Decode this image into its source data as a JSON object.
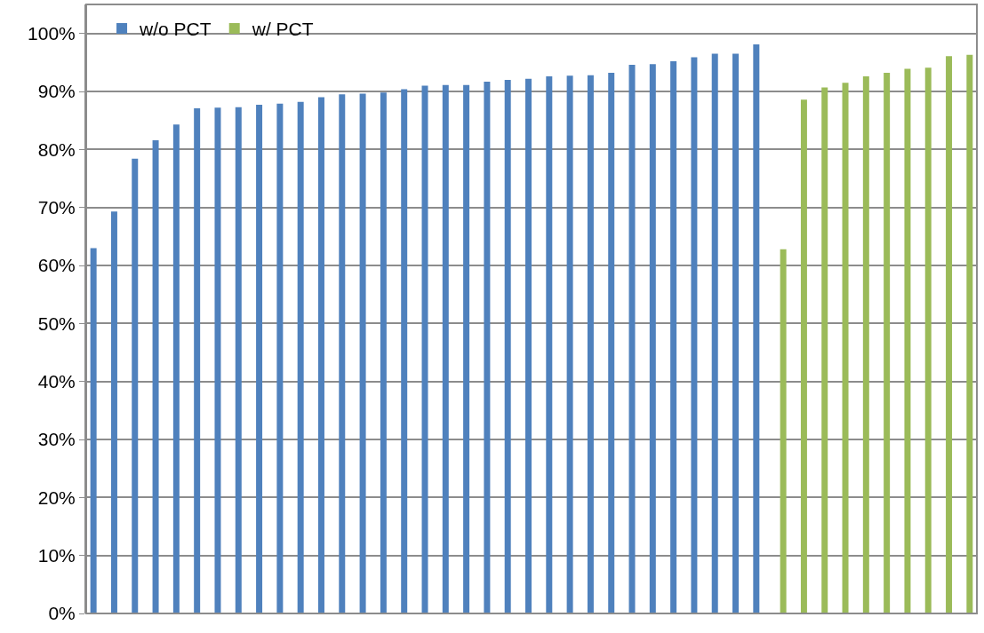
{
  "chart_data": {
    "type": "bar",
    "categories": [
      null,
      null,
      null,
      null,
      null,
      null,
      null,
      null,
      null,
      null,
      null,
      null,
      null,
      null,
      null,
      null,
      null,
      null,
      null,
      null,
      null,
      null,
      null,
      null,
      null,
      null,
      null,
      null,
      null,
      null,
      null,
      null,
      null,
      null,
      null,
      null,
      null,
      null,
      null,
      null,
      null,
      null,
      null
    ],
    "series": [
      {
        "name": "w/o PCT",
        "color": "#4f81bd",
        "values": [
          63.0,
          69.3,
          78.4,
          81.6,
          84.3,
          87.1,
          87.2,
          87.3,
          87.7,
          87.9,
          88.2,
          89.0,
          89.5,
          89.6,
          89.8,
          90.4,
          91.0,
          91.1,
          91.1,
          91.7,
          92.0,
          92.2,
          92.6,
          92.7,
          92.8,
          93.2,
          94.6,
          94.7,
          95.2,
          95.9,
          96.5,
          96.5,
          98.1,
          null,
          null,
          null,
          null,
          null,
          null,
          null,
          null,
          null,
          null
        ]
      },
      {
        "name": "w/ PCT",
        "color": "#9bbb59",
        "values": [
          null,
          null,
          null,
          null,
          null,
          null,
          null,
          null,
          null,
          null,
          null,
          null,
          null,
          null,
          null,
          null,
          null,
          null,
          null,
          null,
          null,
          null,
          null,
          null,
          null,
          null,
          null,
          null,
          null,
          null,
          null,
          null,
          null,
          62.8,
          88.6,
          90.7,
          91.5,
          92.6,
          93.2,
          93.9,
          94.1,
          96.1,
          96.3
        ]
      }
    ],
    "ylim": [
      0,
      105
    ],
    "yticks": [
      {
        "value": 0,
        "label": "0%"
      },
      {
        "value": 10,
        "label": "10%"
      },
      {
        "value": 20,
        "label": "20%"
      },
      {
        "value": 30,
        "label": "30%"
      },
      {
        "value": 40,
        "label": "40%"
      },
      {
        "value": 50,
        "label": "50%"
      },
      {
        "value": 60,
        "label": "60%"
      },
      {
        "value": 70,
        "label": "70%"
      },
      {
        "value": 80,
        "label": "80%"
      },
      {
        "value": 90,
        "label": "90%"
      },
      {
        "value": 100,
        "label": "100%"
      }
    ],
    "grid": "y",
    "legend": "top left",
    "tick_labels": "y"
  }
}
